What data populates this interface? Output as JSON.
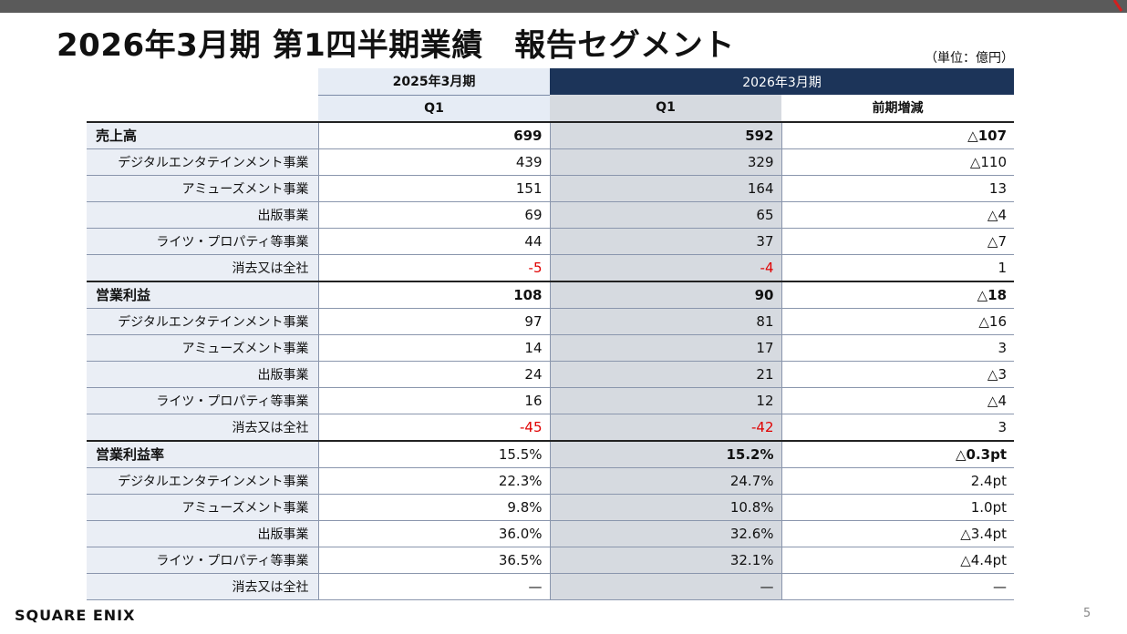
{
  "title": "2026年3月期 第1四半期業績　報告セグメント",
  "unit": "（単位：億円）",
  "headers": {
    "fy_prev": "2025年3月期",
    "fy_cur": "2026年3月期",
    "q1_prev": "Q1",
    "q1_cur": "Q1",
    "diff": "前期増減"
  },
  "rows": [
    {
      "label": "売上高",
      "prev": "699",
      "cur": "592",
      "diff": "△107"
    },
    {
      "label": "デジタルエンタテインメント事業",
      "prev": "439",
      "cur": "329",
      "diff": "△110"
    },
    {
      "label": "アミューズメント事業",
      "prev": "151",
      "cur": "164",
      "diff": "13"
    },
    {
      "label": "出版事業",
      "prev": "69",
      "cur": "65",
      "diff": "△4"
    },
    {
      "label": "ライツ・プロパティ等事業",
      "prev": "44",
      "cur": "37",
      "diff": "△7"
    },
    {
      "label": "消去又は全社",
      "prev": "-5",
      "cur": "-4",
      "diff": "1"
    },
    {
      "label": "営業利益",
      "prev": "108",
      "cur": "90",
      "diff": "△18"
    },
    {
      "label": "デジタルエンタテインメント事業",
      "prev": "97",
      "cur": "81",
      "diff": "△16"
    },
    {
      "label": "アミューズメント事業",
      "prev": "14",
      "cur": "17",
      "diff": "3"
    },
    {
      "label": "出版事業",
      "prev": "24",
      "cur": "21",
      "diff": "△3"
    },
    {
      "label": "ライツ・プロパティ等事業",
      "prev": "16",
      "cur": "12",
      "diff": "△4"
    },
    {
      "label": "消去又は全社",
      "prev": "-45",
      "cur": "-42",
      "diff": "3"
    },
    {
      "label": "営業利益率",
      "prev": "15.5%",
      "cur": "15.2%",
      "diff": "△0.3pt"
    },
    {
      "label": "デジタルエンタテインメント事業",
      "prev": "22.3%",
      "cur": "24.7%",
      "diff": "2.4pt"
    },
    {
      "label": "アミューズメント事業",
      "prev": "9.8%",
      "cur": "10.8%",
      "diff": "1.0pt"
    },
    {
      "label": "出版事業",
      "prev": "36.0%",
      "cur": "32.6%",
      "diff": "△3.4pt"
    },
    {
      "label": "ライツ・プロパティ等事業",
      "prev": "36.5%",
      "cur": "32.1%",
      "diff": "△4.4pt"
    },
    {
      "label": "消去又は全社",
      "prev": "—",
      "cur": "—",
      "diff": "—"
    }
  ],
  "footer": {
    "logo": "SQUARE ENIX",
    "page": "5"
  },
  "colors": {
    "header_dark": "#1c3459",
    "negative": "#e00000"
  }
}
